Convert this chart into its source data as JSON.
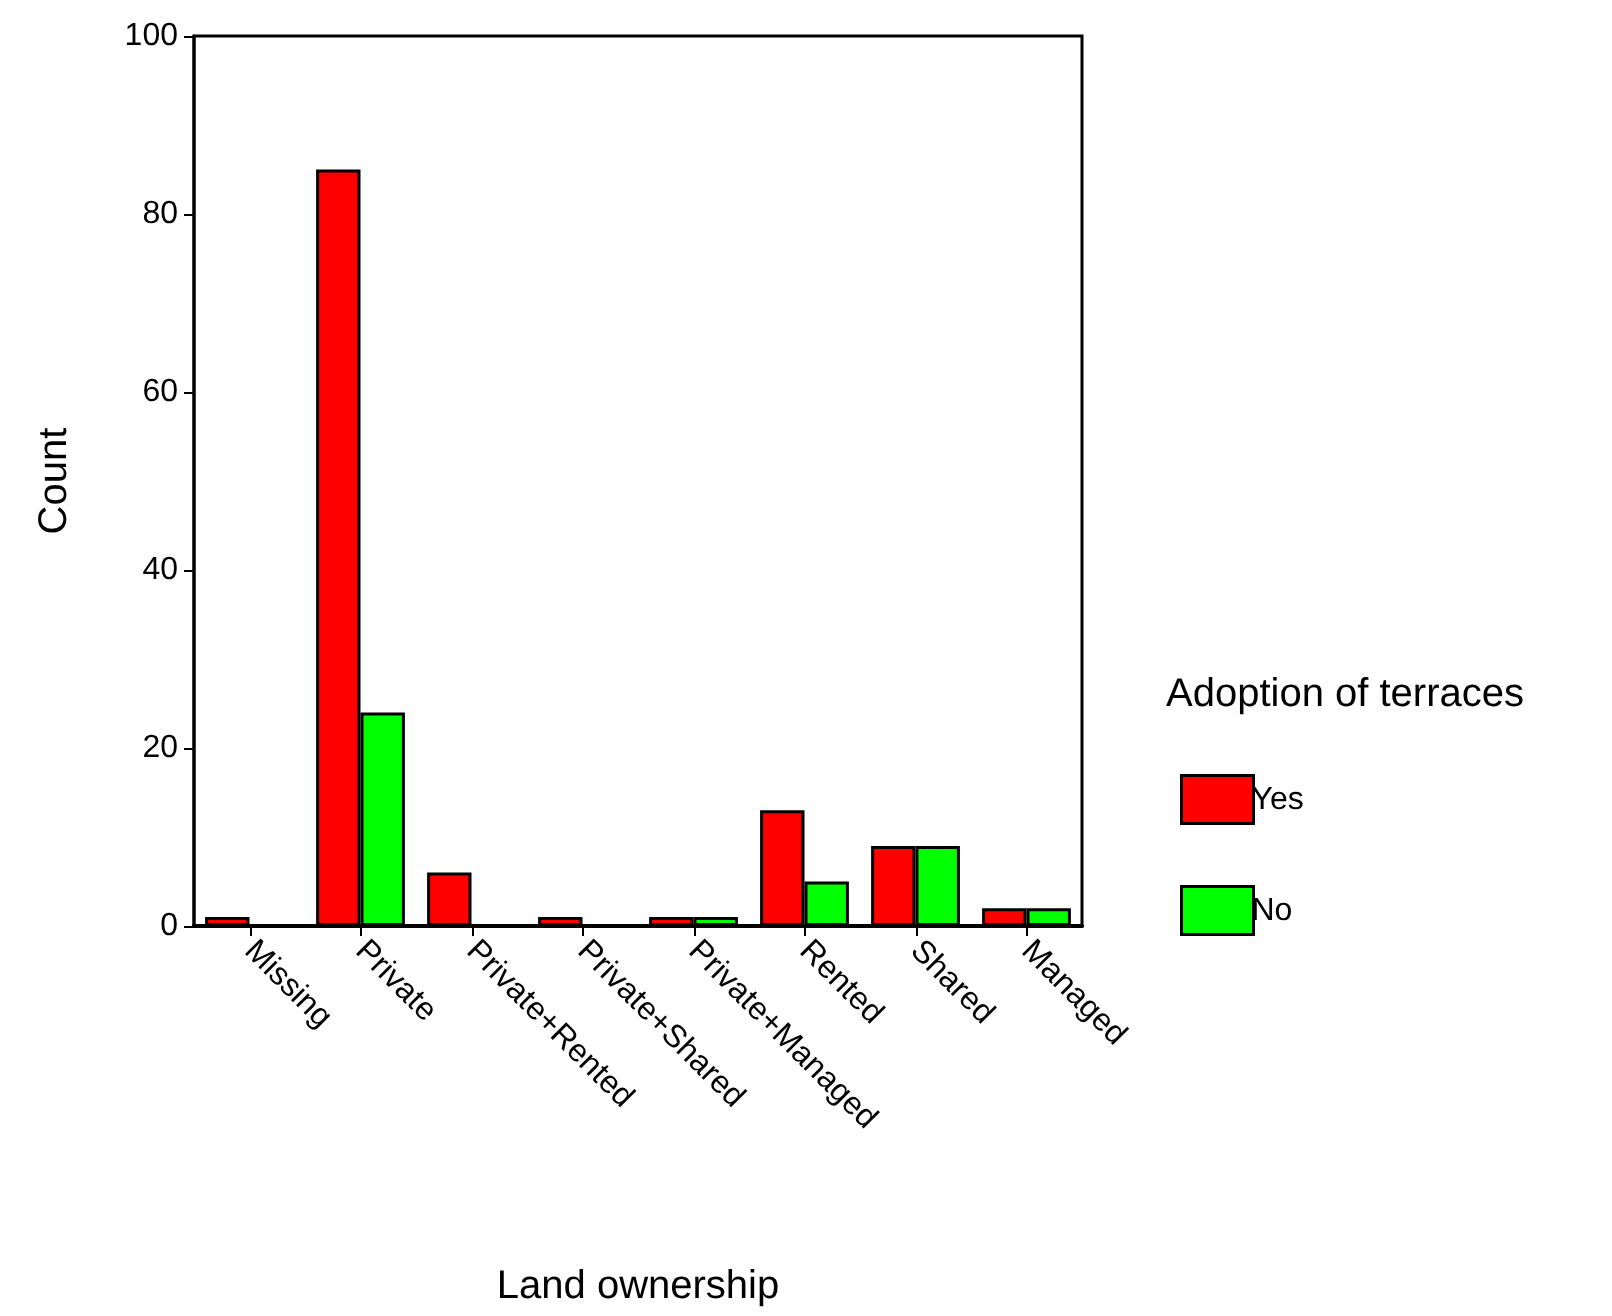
{
  "chart_data": {
    "type": "bar",
    "xlabel": "Land ownership",
    "ylabel": "Count",
    "legend_title": "Adoption of terraces",
    "categories": [
      "Missing",
      "Private",
      "Private+Rented",
      "Private+Shared",
      "Private+Managed",
      "Rented",
      "Shared",
      "Managed"
    ],
    "series": [
      {
        "name": "Yes",
        "color": "#ff0000",
        "values": [
          1,
          85,
          6,
          1,
          1,
          13,
          9,
          2
        ]
      },
      {
        "name": "No",
        "color": "#00ff00",
        "values": [
          null,
          24,
          null,
          null,
          1,
          5,
          9,
          2
        ]
      }
    ],
    "ylim": [
      0,
      100
    ],
    "yticks": [
      0,
      20,
      40,
      60,
      80,
      100
    ],
    "grid": false,
    "legend": "right"
  }
}
